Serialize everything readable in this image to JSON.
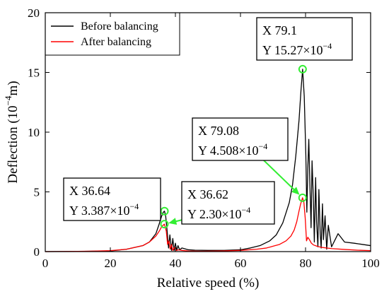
{
  "chart_data": {
    "type": "line",
    "xlabel": "Relative speed (%)",
    "ylabel": "Deflection (10",
    "ylabel_sup": "−4",
    "ylabel_tail": "m)",
    "xlim": [
      0,
      100
    ],
    "ylim": [
      0,
      20
    ],
    "xticks": [
      0,
      20,
      40,
      60,
      80,
      100
    ],
    "yticks": [
      0,
      5,
      10,
      15,
      20
    ],
    "grid": false,
    "legend_position": "top-left",
    "series": [
      {
        "name": "Before balancing",
        "color": "#000000",
        "x": [
          0,
          10,
          20,
          25,
          30,
          32,
          34,
          35,
          35.8,
          36.3,
          36.64,
          37.0,
          37.4,
          37.9,
          38.3,
          38.8,
          39.2,
          39.6,
          40.0,
          40.4,
          40.8,
          41.3,
          42,
          44,
          46,
          50,
          55,
          60,
          63,
          66,
          69,
          71,
          73,
          75,
          76,
          77,
          78,
          78.6,
          79.1,
          79.6,
          80.1,
          80.4,
          80.7,
          81.0,
          81.3,
          81.7,
          82.0,
          82.4,
          82.7,
          83.1,
          83.4,
          83.8,
          84.1,
          84.5,
          84.8,
          85.2,
          85.5,
          86.0,
          86.5,
          87,
          88,
          90,
          92,
          95,
          100
        ],
        "values": [
          0,
          0.01,
          0.05,
          0.2,
          0.5,
          0.8,
          1.5,
          2.3,
          3.0,
          3.3,
          3.387,
          3.0,
          1.9,
          0.3,
          1.4,
          0.1,
          1.1,
          0.1,
          0.7,
          0.1,
          0.5,
          0.15,
          0.3,
          0.15,
          0.12,
          0.1,
          0.1,
          0.15,
          0.3,
          0.5,
          0.9,
          1.4,
          2.4,
          4.1,
          5.6,
          8.0,
          11.0,
          13.5,
          15.27,
          13.0,
          8.0,
          3.3,
          7.0,
          9.4,
          6.0,
          2.0,
          7.6,
          4.5,
          0.8,
          6.2,
          2.5,
          0.4,
          5.2,
          1.6,
          0.3,
          4.0,
          1.0,
          3.0,
          0.2,
          2.2,
          0.4,
          1.5,
          0.8,
          0.7,
          0.5
        ]
      },
      {
        "name": "After balancing",
        "color": "#ff0000",
        "x": [
          0,
          10,
          15,
          20,
          25,
          30,
          32,
          34,
          35,
          35.8,
          36.62,
          37.2,
          37.6,
          38.0,
          38.4,
          38.8,
          39.2,
          39.7,
          40.2,
          41,
          42,
          44,
          48,
          55,
          60,
          65,
          68,
          70,
          72,
          74,
          75.5,
          76.5,
          77.3,
          78.0,
          78.5,
          79.08,
          79.5,
          79.9,
          80.3,
          80.7,
          81.2,
          81.8,
          82.5,
          83.5,
          85,
          88,
          92,
          96,
          100
        ],
        "values": [
          0,
          0.02,
          0.04,
          0.08,
          0.2,
          0.5,
          0.8,
          1.3,
          1.7,
          2.1,
          2.3,
          1.7,
          0.6,
          0.9,
          0.2,
          0.6,
          0.1,
          0.35,
          0.1,
          0.15,
          0.1,
          0.05,
          0.03,
          0.06,
          0.1,
          0.2,
          0.3,
          0.45,
          0.6,
          0.9,
          1.3,
          1.8,
          2.5,
          3.4,
          4.0,
          4.508,
          4.1,
          2.8,
          0.9,
          1.2,
          1.0,
          0.7,
          0.55,
          0.45,
          0.35,
          0.25,
          0.18,
          0.12,
          0.08
        ]
      }
    ],
    "annotations": [
      {
        "x": 79.1,
        "y": 15.27,
        "line1": "X 79.1",
        "line2_pre": "Y 15.27×10",
        "line2_sup": "−4"
      },
      {
        "x": 79.08,
        "y": 4.508,
        "line1": "X 79.08",
        "line2_pre": "Y 4.508×10",
        "line2_sup": "−4"
      },
      {
        "x": 36.64,
        "y": 3.387,
        "line1": "X 36.64",
        "line2_pre": "Y 3.387×10",
        "line2_sup": "−4"
      },
      {
        "x": 36.62,
        "y": 2.3,
        "line1": "X 36.62",
        "line2_pre": "Y 2.30×10",
        "line2_sup": "−4"
      }
    ],
    "marker_color": "#33ee33"
  }
}
